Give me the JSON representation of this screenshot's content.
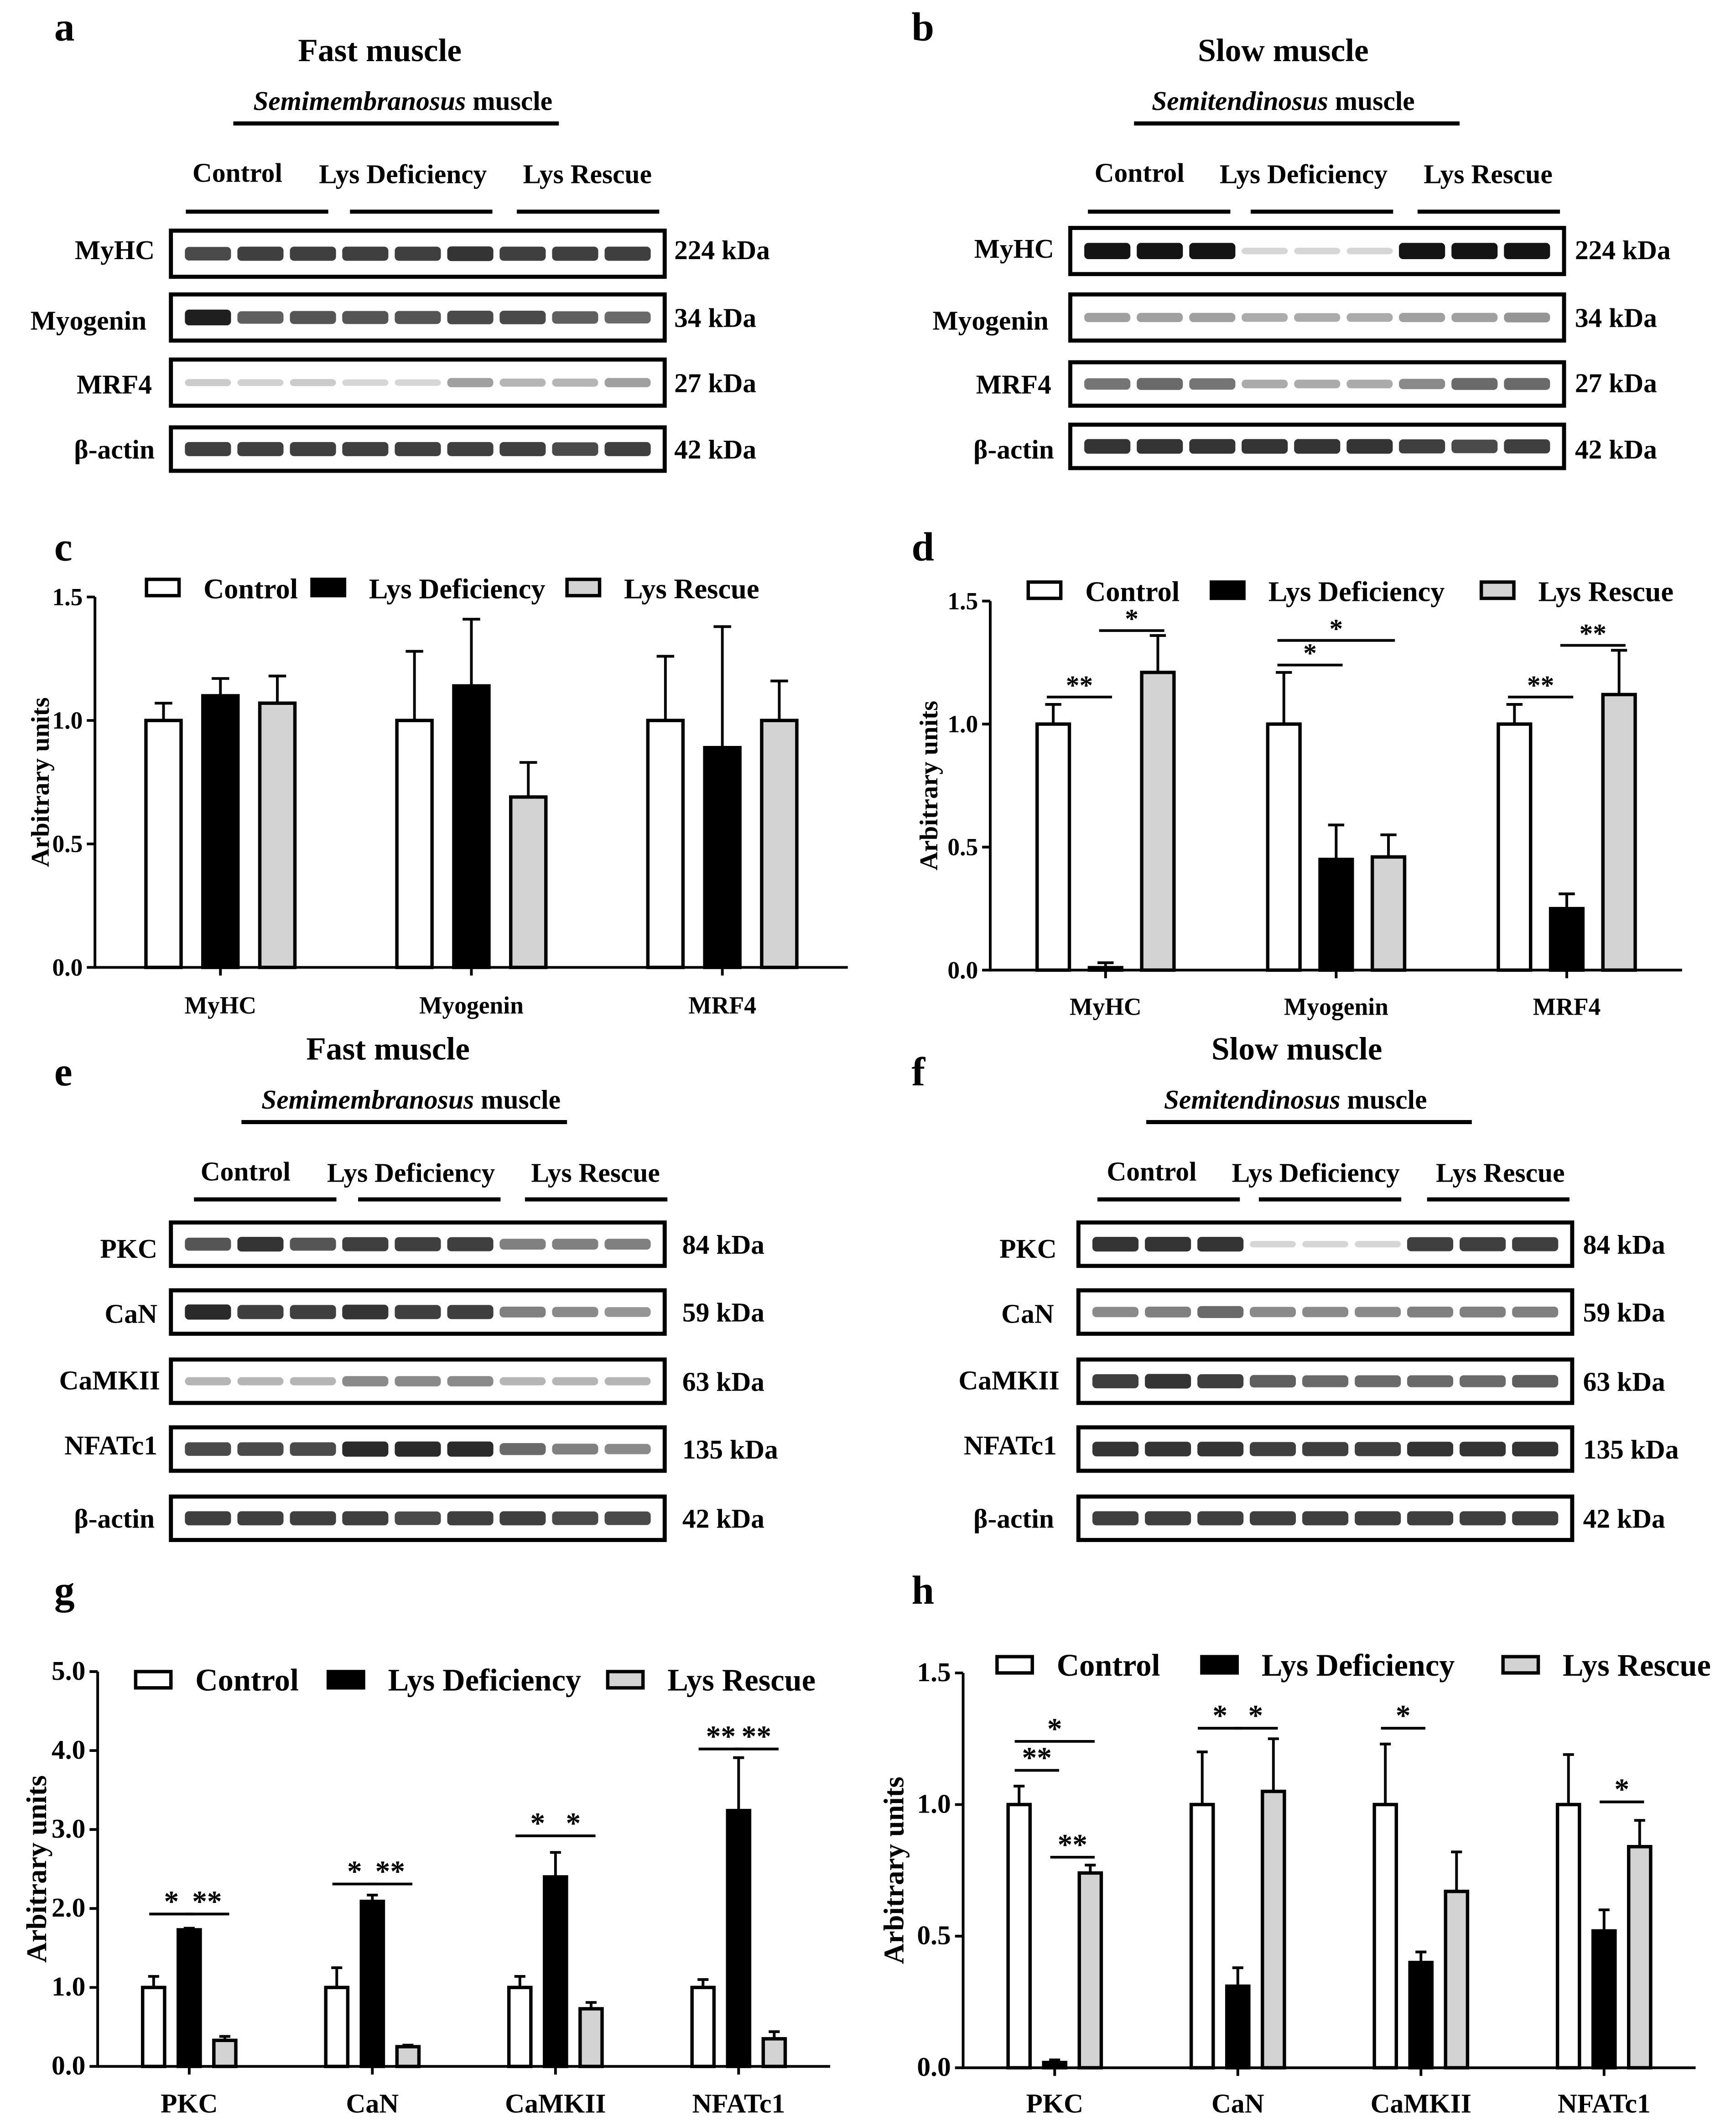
{
  "panel_letters": [
    "a",
    "b",
    "c",
    "d",
    "e",
    "f",
    "g",
    "h"
  ],
  "legend": [
    "Control",
    "Lys Deficiency",
    "Lys Rescue"
  ],
  "colors": {
    "control": "#ffffff",
    "deficiency": "#000000",
    "rescue": "#d3d3d3",
    "stroke": "#000000"
  },
  "blots": [
    {
      "id": "a",
      "title": "Fast muscle",
      "muscle_italic": "Semimembranosus",
      "muscle_suffix": " muscle",
      "rows": [
        {
          "label": "MyHC",
          "kda": "224 kDa",
          "pattern": [
            0.75,
            0.8,
            0.8,
            0.8,
            0.8,
            0.85,
            0.8,
            0.8,
            0.8
          ]
        },
        {
          "label": "Myogenin",
          "kda": "34 kDa",
          "pattern": [
            0.95,
            0.65,
            0.7,
            0.7,
            0.7,
            0.75,
            0.75,
            0.65,
            0.6
          ]
        },
        {
          "label": "MRF4",
          "kda": "27 kDa",
          "pattern": [
            0.15,
            0.12,
            0.15,
            0.1,
            0.1,
            0.35,
            0.25,
            0.25,
            0.35
          ]
        },
        {
          "label": "β-actin",
          "kda": "42 kDa",
          "pattern": [
            0.8,
            0.8,
            0.8,
            0.8,
            0.8,
            0.8,
            0.8,
            0.75,
            0.8
          ]
        }
      ]
    },
    {
      "id": "b",
      "title": "Slow muscle",
      "muscle_italic": "Semitendinosus",
      "muscle_suffix": " muscle",
      "rows": [
        {
          "label": "MyHC",
          "kda": "224 kDa",
          "pattern": [
            1,
            1,
            1,
            0.1,
            0.1,
            0.1,
            1,
            1,
            1
          ]
        },
        {
          "label": "Myogenin",
          "kda": "34 kDa",
          "pattern": [
            0.35,
            0.35,
            0.35,
            0.3,
            0.3,
            0.3,
            0.35,
            0.35,
            0.4
          ]
        },
        {
          "label": "MRF4",
          "kda": "27 kDa",
          "pattern": [
            0.55,
            0.6,
            0.55,
            0.3,
            0.3,
            0.3,
            0.45,
            0.6,
            0.6
          ]
        },
        {
          "label": "β-actin",
          "kda": "42 kDa",
          "pattern": [
            0.85,
            0.85,
            0.85,
            0.85,
            0.85,
            0.85,
            0.8,
            0.75,
            0.8
          ]
        }
      ]
    },
    {
      "id": "e",
      "title": "Fast muscle",
      "muscle_italic": "Semimembranosus",
      "muscle_suffix": " muscle",
      "rows": [
        {
          "label": "PKC",
          "kda": "84 kDa",
          "pattern": [
            0.7,
            0.85,
            0.7,
            0.8,
            0.8,
            0.8,
            0.5,
            0.5,
            0.5
          ]
        },
        {
          "label": "CaN",
          "kda": "59 kDa",
          "pattern": [
            0.9,
            0.8,
            0.8,
            0.85,
            0.8,
            0.8,
            0.5,
            0.45,
            0.4
          ]
        },
        {
          "label": "CaMKII",
          "kda": "63 kDa",
          "pattern": [
            0.25,
            0.25,
            0.25,
            0.45,
            0.45,
            0.45,
            0.25,
            0.25,
            0.25
          ]
        },
        {
          "label": "NFATc1",
          "kda": "135 kDa",
          "pattern": [
            0.75,
            0.75,
            0.75,
            0.9,
            0.9,
            0.9,
            0.6,
            0.5,
            0.45
          ]
        },
        {
          "label": "β-actin",
          "kda": "42 kDa",
          "pattern": [
            0.8,
            0.8,
            0.8,
            0.8,
            0.75,
            0.8,
            0.8,
            0.75,
            0.75
          ]
        }
      ]
    },
    {
      "id": "f",
      "title": "Slow muscle",
      "muscle_italic": "Semitendinosus",
      "muscle_suffix": " muscle",
      "rows": [
        {
          "label": "PKC",
          "kda": "84 kDa",
          "pattern": [
            0.85,
            0.85,
            0.85,
            0.1,
            0.1,
            0.1,
            0.8,
            0.8,
            0.8
          ]
        },
        {
          "label": "CaN",
          "kda": "59 kDa",
          "pattern": [
            0.45,
            0.5,
            0.6,
            0.45,
            0.45,
            0.45,
            0.5,
            0.5,
            0.5
          ]
        },
        {
          "label": "CaMKII",
          "kda": "63 kDa",
          "pattern": [
            0.8,
            0.85,
            0.8,
            0.65,
            0.6,
            0.6,
            0.6,
            0.6,
            0.65
          ]
        },
        {
          "label": "NFATc1",
          "kda": "135 kDa",
          "pattern": [
            0.85,
            0.85,
            0.85,
            0.8,
            0.8,
            0.8,
            0.85,
            0.85,
            0.85
          ]
        },
        {
          "label": "β-actin",
          "kda": "42 kDa",
          "pattern": [
            0.8,
            0.8,
            0.8,
            0.8,
            0.8,
            0.8,
            0.8,
            0.8,
            0.8
          ]
        }
      ]
    }
  ],
  "chart_data": [
    {
      "panel": "c",
      "type": "bar",
      "ylabel": "Arbitrary units",
      "ylim": [
        0,
        1.5
      ],
      "yticks": [
        "0.0",
        "0.5",
        "1.0",
        "1.5"
      ],
      "tick_values": [
        0,
        0.5,
        1,
        1.5
      ],
      "categories": [
        "MyHC",
        "Myogenin",
        "MRF4"
      ],
      "series": [
        {
          "name": "Control",
          "values": [
            1.0,
            1.0,
            1.0
          ],
          "errors": [
            0.07,
            0.28,
            0.26
          ]
        },
        {
          "name": "Lys Deficiency",
          "values": [
            1.1,
            1.14,
            0.89
          ],
          "errors": [
            0.07,
            0.27,
            0.49
          ]
        },
        {
          "name": "Lys Rescue",
          "values": [
            1.07,
            0.69,
            1.0
          ],
          "errors": [
            0.11,
            0.14,
            0.16
          ]
        }
      ],
      "significance": []
    },
    {
      "panel": "d",
      "type": "bar",
      "ylabel": "Arbitrary units",
      "ylim": [
        0,
        1.5
      ],
      "yticks": [
        "0.0",
        "0.5",
        "1.0",
        "1.5"
      ],
      "tick_values": [
        0,
        0.5,
        1,
        1.5
      ],
      "categories": [
        "MyHC",
        "Myogenin",
        "MRF4"
      ],
      "series": [
        {
          "name": "Control",
          "values": [
            1.0,
            1.0,
            1.0
          ],
          "errors": [
            0.08,
            0.21,
            0.08
          ]
        },
        {
          "name": "Lys Deficiency",
          "values": [
            0.01,
            0.45,
            0.25
          ],
          "errors": [
            0.02,
            0.14,
            0.06
          ]
        },
        {
          "name": "Lys Rescue",
          "values": [
            1.21,
            0.46,
            1.12
          ],
          "errors": [
            0.15,
            0.09,
            0.18
          ]
        }
      ],
      "significance": [
        {
          "category": 0,
          "from": 0,
          "to": 1,
          "label": "**",
          "y": 1.11
        },
        {
          "category": 0,
          "from": 1,
          "to": 2,
          "label": "*",
          "y": 1.38
        },
        {
          "category": 1,
          "from": 0,
          "to": 1,
          "label": "*",
          "y": 1.24
        },
        {
          "category": 1,
          "from": 0,
          "to": 2,
          "label": "*",
          "y": 1.34
        },
        {
          "category": 2,
          "from": 0,
          "to": 1,
          "label": "**",
          "y": 1.11
        },
        {
          "category": 2,
          "from": 1,
          "to": 2,
          "label": "**",
          "y": 1.32
        }
      ]
    },
    {
      "panel": "g",
      "type": "bar",
      "ylabel": "Arbitrary units",
      "ylim": [
        0,
        5
      ],
      "yticks": [
        "0.0",
        "1.0",
        "2.0",
        "3.0",
        "4.0",
        "5.0"
      ],
      "tick_values": [
        0,
        1,
        2,
        3,
        4,
        5
      ],
      "categories": [
        "PKC",
        "CaN",
        "CaMKII",
        "NFATc1"
      ],
      "series": [
        {
          "name": "Control",
          "values": [
            1.0,
            1.0,
            1.0,
            1.0
          ],
          "errors": [
            0.14,
            0.25,
            0.14,
            0.1
          ]
        },
        {
          "name": "Lys Deficiency",
          "values": [
            1.73,
            2.09,
            2.4,
            3.24
          ],
          "errors": [
            0.02,
            0.08,
            0.31,
            0.67
          ]
        },
        {
          "name": "Lys Rescue",
          "values": [
            0.33,
            0.25,
            0.73,
            0.35
          ],
          "errors": [
            0.05,
            0.02,
            0.08,
            0.09
          ]
        }
      ],
      "significance": [
        {
          "category": 0,
          "from": 0,
          "to": 1,
          "label": "*",
          "y": 1.93
        },
        {
          "category": 0,
          "from": 1,
          "to": 2,
          "label": "**",
          "y": 1.93
        },
        {
          "category": 1,
          "from": 0,
          "to": 1,
          "label": "*",
          "y": 2.31
        },
        {
          "category": 1,
          "from": 1,
          "to": 2,
          "label": "**",
          "y": 2.31
        },
        {
          "category": 2,
          "from": 0,
          "to": 1,
          "label": "*",
          "y": 2.92
        },
        {
          "category": 2,
          "from": 1,
          "to": 2,
          "label": "*",
          "y": 2.92
        },
        {
          "category": 3,
          "from": 0,
          "to": 1,
          "label": "**",
          "y": 4.02
        },
        {
          "category": 3,
          "from": 1,
          "to": 2,
          "label": "**",
          "y": 4.02
        }
      ]
    },
    {
      "panel": "h",
      "type": "bar",
      "ylabel": "Arbitrary units",
      "ylim": [
        0,
        1.5
      ],
      "yticks": [
        "0.0",
        "0.5",
        "1.0",
        "1.5"
      ],
      "tick_values": [
        0,
        0.5,
        1,
        1.5
      ],
      "categories": [
        "PKC",
        "CaN",
        "CaMKII",
        "NFATc1"
      ],
      "series": [
        {
          "name": "Control",
          "values": [
            1.0,
            1.0,
            1.0,
            1.0
          ],
          "errors": [
            0.07,
            0.2,
            0.23,
            0.19
          ]
        },
        {
          "name": "Lys Deficiency",
          "values": [
            0.02,
            0.31,
            0.4,
            0.52
          ],
          "errors": [
            0.01,
            0.07,
            0.04,
            0.08
          ]
        },
        {
          "name": "Lys Rescue",
          "values": [
            0.74,
            1.05,
            0.67,
            0.84
          ],
          "errors": [
            0.03,
            0.2,
            0.15,
            0.1
          ]
        }
      ],
      "significance": [
        {
          "category": 0,
          "from": 0,
          "to": 1,
          "label": "**",
          "y": 1.13
        },
        {
          "category": 0,
          "from": 0,
          "to": 2,
          "label": "*",
          "y": 1.24
        },
        {
          "category": 0,
          "from": 1,
          "to": 2,
          "label": "**",
          "y": 0.8
        },
        {
          "category": 1,
          "from": 0,
          "to": 1,
          "label": "*",
          "y": 1.29
        },
        {
          "category": 1,
          "from": 1,
          "to": 2,
          "label": "*",
          "y": 1.29
        },
        {
          "category": 2,
          "from": 0,
          "to": 1,
          "label": "*",
          "y": 1.29
        },
        {
          "category": 3,
          "from": 1,
          "to": 2,
          "label": "*",
          "y": 1.01
        }
      ]
    }
  ]
}
